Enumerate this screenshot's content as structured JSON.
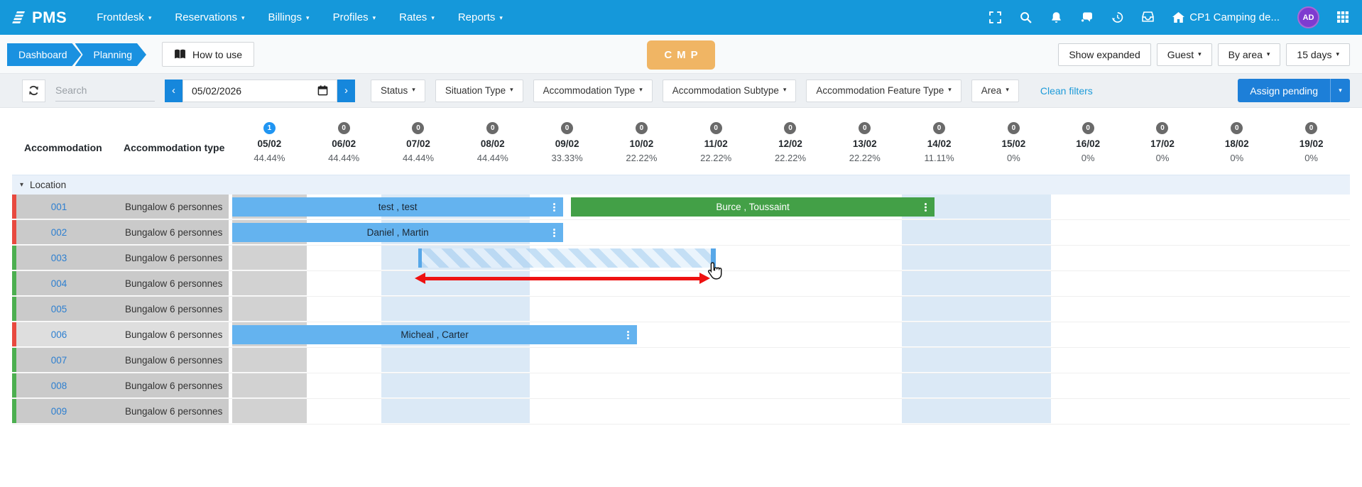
{
  "navbar": {
    "logo_text": "PMS",
    "menus": [
      {
        "label": "Frontdesk"
      },
      {
        "label": "Reservations"
      },
      {
        "label": "Billings"
      },
      {
        "label": "Profiles"
      },
      {
        "label": "Rates"
      },
      {
        "label": "Reports"
      }
    ],
    "icons": [
      "fullscreen",
      "search",
      "notifications",
      "chat",
      "history",
      "inbox"
    ],
    "property": "CP1 Camping de...",
    "avatar": "AD"
  },
  "toolbar": {
    "breadcrumbs": [
      "Dashboard",
      "Planning"
    ],
    "how_to_use_label": "How to use",
    "badge": "CMP",
    "show_expanded_label": "Show expanded",
    "guest_label": "Guest",
    "by_area_label": "By area",
    "days_label": "15 days"
  },
  "filters": {
    "search_placeholder": "Search",
    "date_value": "05/02/2026",
    "dropdowns": [
      "Status",
      "Situation Type",
      "Accommodation Type",
      "Accommodation Subtype",
      "Accommodation Feature Type",
      "Area"
    ],
    "clean_filters_label": "Clean filters",
    "assign_pending_label": "Assign pending"
  },
  "grid": {
    "col_accommodation": "Accommodation",
    "col_type": "Accommodation type",
    "group_label": "Location",
    "dates": [
      {
        "label": "05/02",
        "count": "1",
        "occupancy": "44.44%",
        "active": true
      },
      {
        "label": "06/02",
        "count": "0",
        "occupancy": "44.44%",
        "active": false
      },
      {
        "label": "07/02",
        "count": "0",
        "occupancy": "44.44%",
        "active": false
      },
      {
        "label": "08/02",
        "count": "0",
        "occupancy": "44.44%",
        "active": false
      },
      {
        "label": "09/02",
        "count": "0",
        "occupancy": "33.33%",
        "active": false
      },
      {
        "label": "10/02",
        "count": "0",
        "occupancy": "22.22%",
        "active": false
      },
      {
        "label": "11/02",
        "count": "0",
        "occupancy": "22.22%",
        "active": false
      },
      {
        "label": "12/02",
        "count": "0",
        "occupancy": "22.22%",
        "active": false
      },
      {
        "label": "13/02",
        "count": "0",
        "occupancy": "22.22%",
        "active": false
      },
      {
        "label": "14/02",
        "count": "0",
        "occupancy": "11.11%",
        "active": false
      },
      {
        "label": "15/02",
        "count": "0",
        "occupancy": "0%",
        "active": false
      },
      {
        "label": "16/02",
        "count": "0",
        "occupancy": "0%",
        "active": false
      },
      {
        "label": "17/02",
        "count": "0",
        "occupancy": "0%",
        "active": false
      },
      {
        "label": "18/02",
        "count": "0",
        "occupancy": "0%",
        "active": false
      },
      {
        "label": "19/02",
        "count": "0",
        "occupancy": "0%",
        "active": false
      }
    ],
    "shaded_columns": {
      "today": [
        0
      ],
      "weekend": [
        2,
        3,
        9,
        10
      ]
    },
    "rows": [
      {
        "number": "001",
        "type": "Bungalow 6 personnes",
        "indicator": "#e8493f",
        "highlight": false
      },
      {
        "number": "002",
        "type": "Bungalow 6 personnes",
        "indicator": "#e8493f",
        "highlight": false
      },
      {
        "number": "003",
        "type": "Bungalow 6 personnes",
        "indicator": "#4caf50",
        "highlight": false
      },
      {
        "number": "004",
        "type": "Bungalow 6 personnes",
        "indicator": "#4caf50",
        "highlight": false
      },
      {
        "number": "005",
        "type": "Bungalow 6 personnes",
        "indicator": "#4caf50",
        "highlight": false
      },
      {
        "number": "006",
        "type": "Bungalow 6 personnes",
        "indicator": "#e8493f",
        "highlight": true
      },
      {
        "number": "007",
        "type": "Bungalow 6 personnes",
        "indicator": "#4caf50",
        "highlight": false
      },
      {
        "number": "008",
        "type": "Bungalow 6 personnes",
        "indicator": "#4caf50",
        "highlight": false
      },
      {
        "number": "009",
        "type": "Bungalow 6 personnes",
        "indicator": "#4caf50",
        "highlight": false
      }
    ],
    "reservations": [
      {
        "row": 0,
        "guest": "test , test",
        "start_col": 0,
        "end_col": 4.45,
        "color": "#64b3ef",
        "text_color": "#1b2733"
      },
      {
        "row": 0,
        "guest": "Burce , Toussaint",
        "start_col": 4.55,
        "end_col": 9.44,
        "color": "#43a047",
        "text_color": "#ffffff"
      },
      {
        "row": 1,
        "guest": "Daniel , Martin",
        "start_col": 0,
        "end_col": 4.45,
        "color": "#64b3ef",
        "text_color": "#1b2733"
      },
      {
        "row": 5,
        "guest": "Micheal , Carter",
        "start_col": 0,
        "end_col": 5.44,
        "color": "#64b3ef",
        "text_color": "#1b2733"
      }
    ],
    "selection": {
      "row": 2,
      "start_col": 2.5,
      "end_col": 6.5
    },
    "drag_arrow": {
      "start_col": 2.45,
      "end_col": 6.42
    }
  },
  "colors": {
    "navbar": "#1598da",
    "breadcrumb": "#1a91e0",
    "badge_cmp": "#f0b564",
    "badge_active": "#2095f2",
    "badge_zero": "#6a6a6a",
    "bar_blue": "#64b3ef",
    "bar_green": "#43a047",
    "indicator_red": "#e8493f",
    "indicator_green": "#4caf50",
    "weekend_shade": "#dbe9f6",
    "today_shade": "#d2d2d2",
    "assign_button": "#1d7fd8",
    "drag_arrow": "#ee1111"
  }
}
